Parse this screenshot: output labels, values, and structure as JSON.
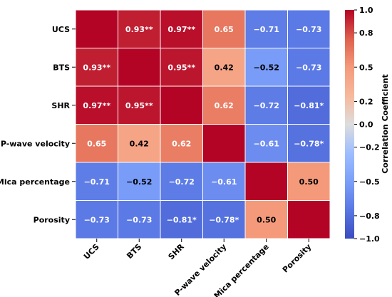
{
  "chart_data": {
    "type": "heatmap",
    "rows": [
      "UCS",
      "BTS",
      "SHR",
      "P-wave velocity",
      "Mica percentage",
      "Porosity"
    ],
    "columns": [
      "UCS",
      "BTS",
      "SHR",
      "P-wave velocity",
      "Mica percentage",
      "Porosity"
    ],
    "values": [
      [
        1.0,
        0.93,
        0.97,
        0.65,
        -0.71,
        -0.73
      ],
      [
        0.93,
        1.0,
        0.95,
        0.42,
        -0.52,
        -0.73
      ],
      [
        0.97,
        0.95,
        1.0,
        0.62,
        -0.72,
        -0.81
      ],
      [
        0.65,
        0.42,
        0.62,
        1.0,
        -0.61,
        -0.78
      ],
      [
        -0.71,
        -0.52,
        -0.72,
        -0.61,
        1.0,
        0.5
      ],
      [
        -0.73,
        -0.73,
        -0.81,
        -0.78,
        0.5,
        1.0
      ]
    ],
    "cell_labels": [
      [
        "",
        "0.93**",
        "0.97**",
        "0.65",
        "−0.71",
        "−0.73"
      ],
      [
        "0.93**",
        "",
        "0.95**",
        "0.42",
        "−0.52",
        "−0.73"
      ],
      [
        "0.97**",
        "0.95**",
        "",
        "0.62",
        "−0.72",
        "−0.81*"
      ],
      [
        "0.65",
        "0.42",
        "0.62",
        "",
        "−0.61",
        "−0.78*"
      ],
      [
        "−0.71",
        "−0.52",
        "−0.72",
        "−0.61",
        "",
        "0.50"
      ],
      [
        "−0.73",
        "−0.73",
        "−0.81*",
        "−0.78*",
        "0.50",
        ""
      ]
    ],
    "colorbar": {
      "label": "Correlation Coefficient",
      "range": [
        -1.0,
        1.0
      ],
      "ticks": [
        1.0,
        0.8,
        0.5,
        0.2,
        0.0,
        -0.2,
        -0.5,
        -0.8,
        -1.0
      ],
      "tick_labels": [
        "1.0",
        "0.8",
        "0.5",
        "0.2",
        "0.0",
        "−0.2",
        "−0.5",
        "−0.8",
        "−1.0"
      ]
    },
    "colormap": "coolwarm",
    "colors": {
      "low": "#3b4cc0",
      "mid": "#dddddd",
      "high": "#b40426"
    }
  }
}
